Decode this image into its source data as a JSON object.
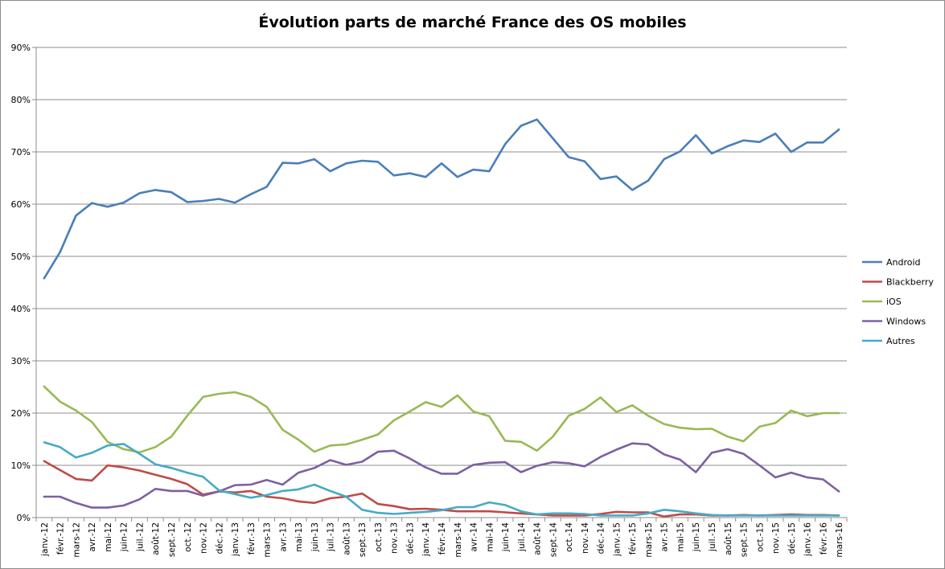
{
  "chart_data": {
    "type": "line",
    "title": "Évolution parts de marché France des OS mobiles",
    "xlabel": "",
    "ylabel": "",
    "ylim": [
      0,
      0.9
    ],
    "y_ticks": [
      0,
      0.1,
      0.2,
      0.3,
      0.4,
      0.5,
      0.6,
      0.7,
      0.8,
      0.9
    ],
    "y_tick_labels": [
      "0%",
      "10%",
      "20%",
      "30%",
      "40%",
      "50%",
      "60%",
      "70%",
      "80%",
      "90%"
    ],
    "grid": "horizontal",
    "legend_position": "right",
    "categories": [
      "janv.-12",
      "févr.-12",
      "mars-12",
      "avr.-12",
      "mai-12",
      "juin-12",
      "juil.-12",
      "août-12",
      "sept.-12",
      "oct.-12",
      "nov.-12",
      "déc.-12",
      "janv.-13",
      "févr.-13",
      "mars-13",
      "avr.-13",
      "mai-13",
      "juin-13",
      "juil.-13",
      "août-13",
      "sept.-13",
      "oct.-13",
      "nov.-13",
      "déc.-13",
      "janv.-14",
      "févr.-14",
      "mars-14",
      "avr.-14",
      "mai-14",
      "juin-14",
      "juil.-14",
      "août-14",
      "sept.-14",
      "oct.-14",
      "nov.-14",
      "déc.-14",
      "janv.-15",
      "févr.-15",
      "mars-15",
      "avr.-15",
      "mai-15",
      "juin-15",
      "juil.-15",
      "août-15",
      "sept.-15",
      "oct.-15",
      "nov.-15",
      "déc.-15",
      "janv.-16",
      "févr.-16",
      "mars-16"
    ],
    "series": [
      {
        "name": "Android",
        "color": "#4a7ebb",
        "values": [
          0.458,
          0.508,
          0.578,
          0.602,
          0.595,
          0.603,
          0.621,
          0.627,
          0.623,
          0.604,
          0.606,
          0.61,
          0.603,
          0.619,
          0.633,
          0.679,
          0.678,
          0.686,
          0.663,
          0.678,
          0.683,
          0.681,
          0.655,
          0.659,
          0.652,
          0.678,
          0.652,
          0.666,
          0.663,
          0.715,
          0.75,
          0.762,
          0.726,
          0.69,
          0.682,
          0.648,
          0.653,
          0.627,
          0.645,
          0.686,
          0.701,
          0.732,
          0.697,
          0.711,
          0.722,
          0.719,
          0.735,
          0.7,
          0.718,
          0.718,
          0.743
        ]
      },
      {
        "name": "Blackberry",
        "color": "#be4b48",
        "values": [
          0.108,
          0.091,
          0.074,
          0.071,
          0.1,
          0.096,
          0.09,
          0.082,
          0.074,
          0.064,
          0.044,
          0.05,
          0.048,
          0.051,
          0.04,
          0.037,
          0.031,
          0.028,
          0.037,
          0.04,
          0.046,
          0.026,
          0.022,
          0.016,
          0.017,
          0.015,
          0.012,
          0.012,
          0.012,
          0.01,
          0.008,
          0.006,
          0.004,
          0.004,
          0.004,
          0.007,
          0.011,
          0.01,
          0.01,
          0.002,
          0.006,
          0.006,
          0.004,
          0.004,
          0.005,
          0.004,
          0.005,
          0.006,
          0.005,
          0.005,
          0.004
        ]
      },
      {
        "name": "iOS",
        "color": "#98b954",
        "values": [
          0.251,
          0.222,
          0.205,
          0.183,
          0.145,
          0.131,
          0.125,
          0.135,
          0.155,
          0.195,
          0.231,
          0.237,
          0.24,
          0.231,
          0.212,
          0.168,
          0.149,
          0.126,
          0.138,
          0.14,
          0.149,
          0.159,
          0.186,
          0.203,
          0.221,
          0.212,
          0.234,
          0.203,
          0.194,
          0.147,
          0.145,
          0.128,
          0.155,
          0.195,
          0.208,
          0.23,
          0.202,
          0.215,
          0.195,
          0.179,
          0.172,
          0.169,
          0.17,
          0.155,
          0.146,
          0.174,
          0.181,
          0.205,
          0.194,
          0.2,
          0.2
        ]
      },
      {
        "name": "Windows",
        "color": "#7d60a0",
        "values": [
          0.04,
          0.04,
          0.028,
          0.019,
          0.019,
          0.023,
          0.035,
          0.055,
          0.051,
          0.051,
          0.042,
          0.05,
          0.062,
          0.063,
          0.072,
          0.063,
          0.086,
          0.095,
          0.11,
          0.101,
          0.107,
          0.126,
          0.128,
          0.113,
          0.096,
          0.084,
          0.084,
          0.101,
          0.105,
          0.106,
          0.087,
          0.099,
          0.106,
          0.104,
          0.098,
          0.116,
          0.13,
          0.142,
          0.14,
          0.121,
          0.111,
          0.087,
          0.124,
          0.131,
          0.122,
          0.1,
          0.077,
          0.086,
          0.077,
          0.073,
          0.05
        ]
      },
      {
        "name": "Autres",
        "color": "#46aac5",
        "values": [
          0.144,
          0.135,
          0.115,
          0.124,
          0.138,
          0.141,
          0.122,
          0.102,
          0.095,
          0.086,
          0.078,
          0.052,
          0.045,
          0.038,
          0.043,
          0.051,
          0.054,
          0.063,
          0.051,
          0.04,
          0.015,
          0.009,
          0.007,
          0.009,
          0.011,
          0.014,
          0.02,
          0.02,
          0.029,
          0.024,
          0.012,
          0.006,
          0.008,
          0.008,
          0.007,
          0.004,
          0.004,
          0.004,
          0.008,
          0.015,
          0.012,
          0.008,
          0.005,
          0.004,
          0.004,
          0.004,
          0.004,
          0.004,
          0.004,
          0.004,
          0.004
        ]
      }
    ]
  }
}
